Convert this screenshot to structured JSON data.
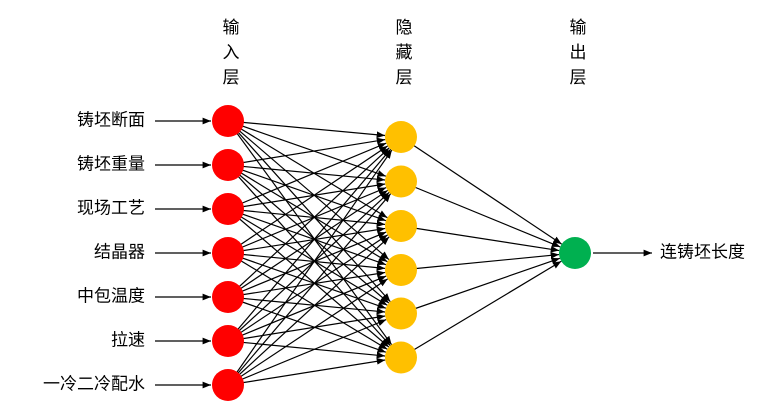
{
  "layers": [
    {
      "title": "输入层"
    },
    {
      "title": "隐藏层"
    },
    {
      "title": "输出层"
    }
  ],
  "inputs": [
    "铸坯断面",
    "铸坯重量",
    "现场工艺",
    "结晶器",
    "中包温度",
    "拉速",
    "一冷二冷配水"
  ],
  "output": "连铸坯长度"
}
